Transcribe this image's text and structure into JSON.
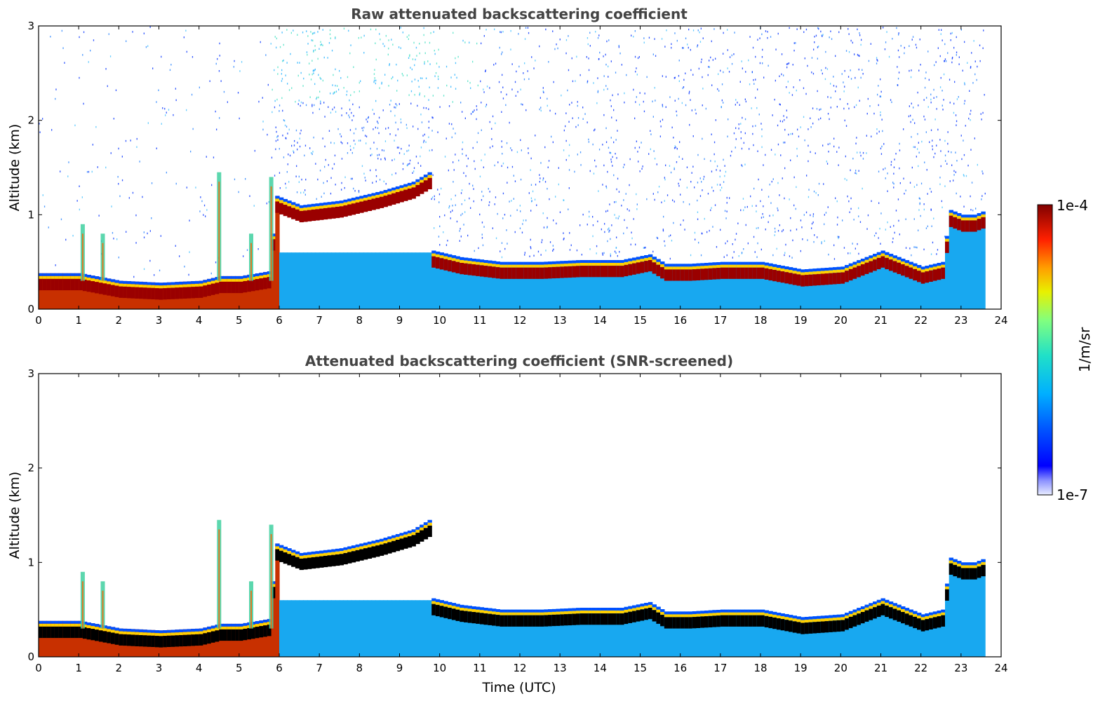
{
  "chart_data": [
    {
      "type": "heatmap",
      "title": "Raw attenuated backscattering coefficient",
      "xlabel": "",
      "ylabel": "Altitude (km)",
      "xlim": [
        0,
        24
      ],
      "ylim": [
        0,
        3
      ],
      "x_ticks": [
        "0",
        "1",
        "2",
        "3",
        "4",
        "5",
        "6",
        "7",
        "8",
        "9",
        "10",
        "11",
        "12",
        "13",
        "14",
        "15",
        "16",
        "17",
        "18",
        "19",
        "20",
        "21",
        "22",
        "23",
        "24"
      ],
      "y_ticks": [
        "0",
        "1",
        "2",
        "3"
      ],
      "data_end_hour": 23.6,
      "noise_level": "high",
      "layer_top_km": [
        [
          0,
          0.38
        ],
        [
          0.5,
          0.38
        ],
        [
          1.0,
          0.38
        ],
        [
          2.0,
          0.3
        ],
        [
          3.0,
          0.28
        ],
        [
          4.0,
          0.3
        ],
        [
          4.5,
          0.35
        ],
        [
          5.0,
          0.35
        ],
        [
          5.7,
          0.4
        ],
        [
          5.9,
          1.2
        ],
        [
          6.5,
          1.1
        ],
        [
          7.5,
          1.15
        ],
        [
          8.5,
          1.25
        ],
        [
          9.3,
          1.35
        ],
        [
          9.7,
          1.45
        ],
        [
          9.8,
          0.62
        ],
        [
          10.5,
          0.55
        ],
        [
          11.5,
          0.5
        ],
        [
          12.5,
          0.5
        ],
        [
          13.5,
          0.52
        ],
        [
          14.5,
          0.52
        ],
        [
          15.2,
          0.58
        ],
        [
          15.6,
          0.48
        ],
        [
          16.2,
          0.48
        ],
        [
          17.0,
          0.5
        ],
        [
          18.0,
          0.5
        ],
        [
          19.0,
          0.42
        ],
        [
          20.0,
          0.45
        ],
        [
          21.0,
          0.62
        ],
        [
          22.0,
          0.45
        ],
        [
          22.5,
          0.5
        ],
        [
          22.7,
          1.05
        ],
        [
          23.0,
          1.0
        ],
        [
          23.3,
          1.0
        ],
        [
          23.6,
          1.05
        ]
      ],
      "spikes": [
        {
          "hour": 1.1,
          "top_km": 0.9
        },
        {
          "hour": 1.6,
          "top_km": 0.8
        },
        {
          "hour": 4.5,
          "top_km": 1.45
        },
        {
          "hour": 5.3,
          "top_km": 0.8
        },
        {
          "hour": 5.8,
          "top_km": 1.4
        }
      ]
    },
    {
      "type": "heatmap",
      "title": "Attenuated backscattering coefficient (SNR-screened)",
      "xlabel": "Time (UTC)",
      "ylabel": "Altitude (km)",
      "xlim": [
        0,
        24
      ],
      "ylim": [
        0,
        3
      ],
      "x_ticks": [
        "0",
        "1",
        "2",
        "3",
        "4",
        "5",
        "6",
        "7",
        "8",
        "9",
        "10",
        "11",
        "12",
        "13",
        "14",
        "15",
        "16",
        "17",
        "18",
        "19",
        "20",
        "21",
        "22",
        "23",
        "24"
      ],
      "y_ticks": [
        "0",
        "1",
        "2",
        "3"
      ],
      "data_end_hour": 23.6,
      "noise_level": "none",
      "saturated_color": "#000000"
    }
  ],
  "colorbar": {
    "top_label": "1e-4",
    "bottom_label": "1e-7",
    "unit": "1/m/sr",
    "scale": "log",
    "vmin": 1e-07,
    "vmax": 0.0001
  }
}
